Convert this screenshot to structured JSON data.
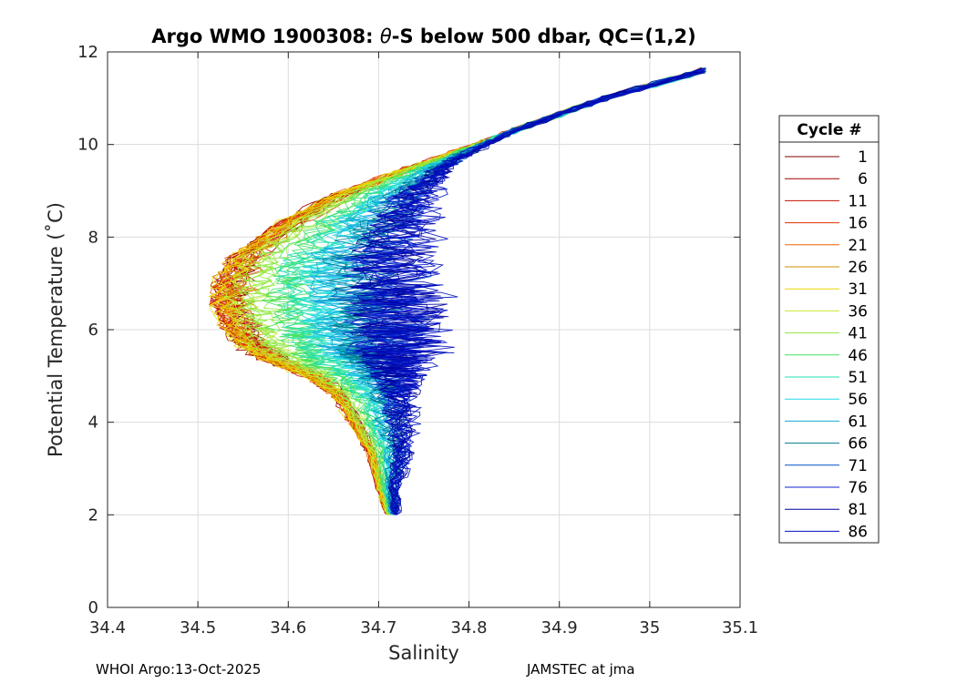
{
  "chart_data": {
    "type": "line",
    "title_prefix": "Argo WMO 1900308: ",
    "title_theta": "θ",
    "title_suffix": "-S below 500 dbar,  QC=(1,2)",
    "xlabel": "Salinity",
    "ylabel": "Potential Temperature (˚C)",
    "xlim": [
      34.4,
      35.1
    ],
    "ylim": [
      0,
      12
    ],
    "xticks": [
      34.4,
      34.5,
      34.6,
      34.7,
      34.8,
      34.9,
      35,
      35.1
    ],
    "xtick_labels": [
      "34.4",
      "34.5",
      "34.6",
      "34.7",
      "34.8",
      "34.9",
      "35",
      "35.1"
    ],
    "yticks": [
      0,
      2,
      4,
      6,
      8,
      10,
      12
    ],
    "ytick_labels": [
      "0",
      "2",
      "4",
      "6",
      "8",
      "10",
      "12"
    ],
    "grid": true,
    "legend": {
      "title": "Cycle #",
      "placement": "outside-right",
      "entries": [
        {
          "label": "1",
          "color": "#7f0000"
        },
        {
          "label": "6",
          "color": "#a10000"
        },
        {
          "label": "11",
          "color": "#c61000"
        },
        {
          "label": "16",
          "color": "#e03000"
        },
        {
          "label": "21",
          "color": "#f06000"
        },
        {
          "label": "26",
          "color": "#d08c00"
        },
        {
          "label": "31",
          "color": "#e8d800"
        },
        {
          "label": "36",
          "color": "#c8e830"
        },
        {
          "label": "41",
          "color": "#90e840"
        },
        {
          "label": "46",
          "color": "#40e060"
        },
        {
          "label": "51",
          "color": "#20e0b0"
        },
        {
          "label": "56",
          "color": "#20d8e8"
        },
        {
          "label": "61",
          "color": "#10a8d8"
        },
        {
          "label": "66",
          "color": "#007890"
        },
        {
          "label": "71",
          "color": "#0050c8"
        },
        {
          "label": "76",
          "color": "#1020d0"
        },
        {
          "label": "81",
          "color": "#000098"
        },
        {
          "label": "86",
          "color": "#0010c0"
        }
      ]
    },
    "envelope": {
      "upper_x": [
        35.06,
        34.95,
        34.85,
        34.78,
        34.72,
        34.65,
        34.59,
        34.54,
        34.52,
        34.52,
        34.53,
        34.55,
        34.58,
        34.62,
        34.65,
        34.67,
        34.69,
        34.7,
        34.71
      ],
      "upper_y": [
        11.6,
        11.0,
        10.3,
        9.8,
        9.4,
        8.9,
        8.3,
        7.6,
        7.0,
        6.5,
        6.0,
        5.6,
        5.3,
        5.0,
        4.6,
        4.0,
        3.3,
        2.6,
        2.0
      ],
      "lower_x": [
        35.06,
        34.95,
        34.85,
        34.8,
        34.77,
        34.75,
        34.74,
        34.73,
        34.74,
        34.74,
        34.74,
        34.74,
        34.73,
        34.73,
        34.73,
        34.73,
        34.73,
        34.72,
        34.72
      ],
      "lower_y": [
        11.6,
        11.0,
        10.3,
        9.8,
        9.4,
        8.9,
        8.3,
        7.6,
        7.0,
        6.5,
        6.0,
        5.6,
        5.3,
        5.0,
        4.6,
        4.0,
        3.3,
        2.6,
        2.0
      ]
    },
    "series": [
      {
        "label": "1",
        "color": "#7f0000",
        "lobe": 0.08
      },
      {
        "label": "6",
        "color": "#a10000",
        "lobe": 0.05
      },
      {
        "label": "11",
        "color": "#c61000",
        "lobe": 0.04
      },
      {
        "label": "16",
        "color": "#e03000",
        "lobe": 0.09
      },
      {
        "label": "21",
        "color": "#f06000",
        "lobe": 0.03
      },
      {
        "label": "26",
        "color": "#d08c00",
        "lobe": 0.1
      },
      {
        "label": "31",
        "color": "#e8d800",
        "lobe": 0.02
      },
      {
        "label": "36",
        "color": "#c8e830",
        "lobe": 0.14
      },
      {
        "label": "41",
        "color": "#90e840",
        "lobe": 0.22
      },
      {
        "label": "46",
        "color": "#40e060",
        "lobe": 0.34
      },
      {
        "label": "51",
        "color": "#20e0b0",
        "lobe": 0.46
      },
      {
        "label": "56",
        "color": "#20d8e8",
        "lobe": 0.56
      },
      {
        "label": "61",
        "color": "#10a8d8",
        "lobe": 0.66
      },
      {
        "label": "66",
        "color": "#007890",
        "lobe": 0.74
      },
      {
        "label": "71",
        "color": "#0050c8",
        "lobe": 0.82
      },
      {
        "label": "76",
        "color": "#1020d0",
        "lobe": 0.88
      },
      {
        "label": "81",
        "color": "#000098",
        "lobe": 0.92
      },
      {
        "label": "86",
        "color": "#0010c0",
        "lobe": 0.96
      }
    ]
  },
  "footer": {
    "left": "WHOI Argo:13-Oct-2025",
    "right": "JAMSTEC at jma"
  }
}
